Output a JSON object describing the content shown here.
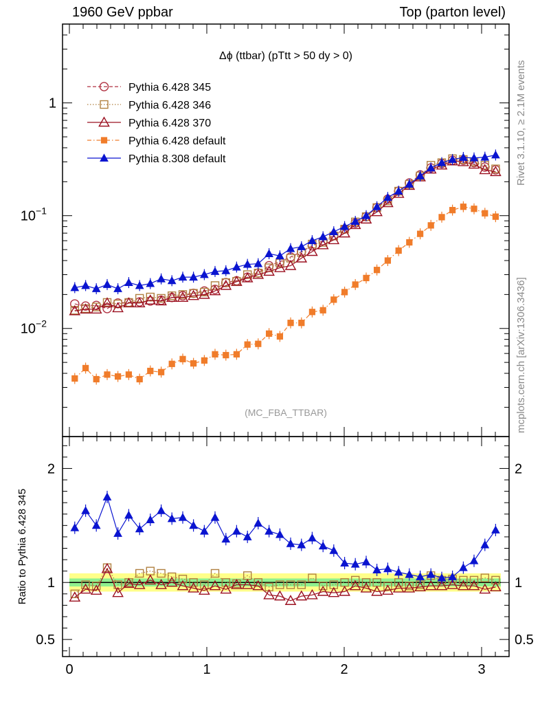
{
  "header": {
    "left": "1960 GeV ppbar",
    "right": "Top (parton level)"
  },
  "side_labels": {
    "rivet": "Rivet 3.1.10, ≥ 2.1M events",
    "mcplots": "mcplots.cern.ch [arXiv:1306.3436]"
  },
  "chart_data": [
    {
      "type": "line",
      "title": "Δϕ (ttbar) (pTtt > 50 dy > 0)",
      "watermark": "(MC_FBA_TTBAR)",
      "xlim": [
        -0.05,
        3.2
      ],
      "ylim": [
        0.0011,
        5.0
      ],
      "yscale": "log",
      "x_ticks": [
        0,
        1,
        2,
        3
      ],
      "y_tick_labels": [
        "10^-2",
        "10^-1",
        "1"
      ],
      "legend_position": "top-left",
      "x": [
        0.039,
        0.118,
        0.196,
        0.275,
        0.353,
        0.432,
        0.511,
        0.589,
        0.668,
        0.746,
        0.825,
        0.903,
        0.982,
        1.06,
        1.139,
        1.217,
        1.296,
        1.374,
        1.453,
        1.532,
        1.61,
        1.689,
        1.767,
        1.846,
        1.924,
        2.003,
        2.081,
        2.16,
        2.238,
        2.317,
        2.396,
        2.474,
        2.553,
        2.631,
        2.71,
        2.788,
        2.867,
        2.945,
        3.024,
        3.102
      ],
      "series": [
        {
          "name": "Pythia 6.428 345",
          "color": "#b03040",
          "marker": "open-circle",
          "line": "dashed",
          "values": [
            0.0165,
            0.0158,
            0.016,
            0.015,
            0.0168,
            0.017,
            0.0172,
            0.0175,
            0.0178,
            0.0188,
            0.0195,
            0.0205,
            0.0215,
            0.0222,
            0.0255,
            0.0265,
            0.0285,
            0.031,
            0.036,
            0.039,
            0.043,
            0.048,
            0.054,
            0.06,
            0.067,
            0.076,
            0.086,
            0.098,
            0.118,
            0.14,
            0.165,
            0.195,
            0.23,
            0.265,
            0.29,
            0.31,
            0.31,
            0.295,
            0.27,
            0.255
          ]
        },
        {
          "name": "Pythia 6.428 346",
          "color": "#b08040",
          "marker": "open-square",
          "line": "dotted",
          "values": [
            0.0145,
            0.015,
            0.0155,
            0.017,
            0.0165,
            0.017,
            0.0185,
            0.019,
            0.0185,
            0.0195,
            0.02,
            0.0205,
            0.021,
            0.024,
            0.0255,
            0.0262,
            0.03,
            0.031,
            0.0345,
            0.038,
            0.042,
            0.047,
            0.056,
            0.058,
            0.066,
            0.076,
            0.088,
            0.098,
            0.118,
            0.135,
            0.165,
            0.19,
            0.225,
            0.28,
            0.295,
            0.32,
            0.315,
            0.3,
            0.28,
            0.26
          ]
        },
        {
          "name": "Pythia 6.428 370",
          "color": "#9b1020",
          "marker": "open-triangle",
          "line": "solid",
          "values": [
            0.0143,
            0.0148,
            0.0148,
            0.0168,
            0.0152,
            0.0168,
            0.0168,
            0.0178,
            0.0175,
            0.0188,
            0.0188,
            0.0195,
            0.02,
            0.0215,
            0.024,
            0.026,
            0.028,
            0.03,
            0.032,
            0.0345,
            0.036,
            0.042,
            0.048,
            0.055,
            0.061,
            0.07,
            0.083,
            0.093,
            0.108,
            0.13,
            0.157,
            0.185,
            0.22,
            0.258,
            0.28,
            0.305,
            0.3,
            0.285,
            0.255,
            0.245
          ]
        },
        {
          "name": "Pythia 6.428 default",
          "color": "#f07c2a",
          "marker": "filled-square",
          "line": "dashdot",
          "values": [
            0.0036,
            0.00445,
            0.00355,
            0.0039,
            0.00375,
            0.0039,
            0.00355,
            0.0042,
            0.0041,
            0.00485,
            0.00535,
            0.0049,
            0.0052,
            0.0059,
            0.0058,
            0.0059,
            0.0072,
            0.0073,
            0.009,
            0.0085,
            0.0112,
            0.0112,
            0.014,
            0.0145,
            0.018,
            0.021,
            0.0245,
            0.028,
            0.033,
            0.04,
            0.049,
            0.058,
            0.069,
            0.082,
            0.097,
            0.112,
            0.12,
            0.115,
            0.105,
            0.098
          ]
        },
        {
          "name": "Pythia 8.308 default",
          "color": "#0a14d0",
          "marker": "filled-triangle",
          "line": "solid",
          "values": [
            0.023,
            0.024,
            0.0225,
            0.0245,
            0.0225,
            0.0255,
            0.024,
            0.025,
            0.0275,
            0.0265,
            0.0285,
            0.0285,
            0.03,
            0.032,
            0.0325,
            0.035,
            0.037,
            0.0375,
            0.046,
            0.044,
            0.051,
            0.053,
            0.06,
            0.065,
            0.072,
            0.08,
            0.089,
            0.1,
            0.12,
            0.145,
            0.165,
            0.19,
            0.225,
            0.265,
            0.295,
            0.315,
            0.328,
            0.325,
            0.33,
            0.345
          ]
        }
      ]
    },
    {
      "type": "line",
      "ylabel": "Ratio to Pythia 6.428 345",
      "xlim": [
        -0.05,
        3.2
      ],
      "ylim": [
        0.35,
        2.28
      ],
      "x_ticks": [
        0,
        1,
        2,
        3
      ],
      "y_ticks": [
        0.5,
        1,
        2
      ],
      "reference_band": {
        "inner_color": "#8ff08f",
        "outer_color": "#ffff8a",
        "inner_halfwidth": 0.035,
        "outer_halfwidth": 0.08
      },
      "x": [
        0.039,
        0.118,
        0.196,
        0.275,
        0.353,
        0.432,
        0.511,
        0.589,
        0.668,
        0.746,
        0.825,
        0.903,
        0.982,
        1.06,
        1.139,
        1.217,
        1.296,
        1.374,
        1.453,
        1.532,
        1.61,
        1.689,
        1.767,
        1.846,
        1.924,
        2.003,
        2.081,
        2.16,
        2.238,
        2.317,
        2.396,
        2.474,
        2.553,
        2.631,
        2.71,
        2.788,
        2.867,
        2.945,
        3.024,
        3.102
      ],
      "series": [
        {
          "name": "Pythia 6.428 346",
          "values": [
            0.9,
            0.98,
            0.97,
            1.13,
            0.98,
            1.0,
            1.08,
            1.1,
            1.08,
            1.05,
            1.03,
            1.0,
            0.98,
            1.08,
            1.0,
            0.99,
            1.06,
            1.0,
            0.96,
            0.98,
            0.98,
            0.98,
            1.04,
            0.97,
            0.98,
            1.0,
            1.02,
            1.0,
            1.0,
            0.97,
            1.0,
            0.97,
            0.98,
            1.06,
            1.02,
            1.03,
            1.02,
            1.02,
            1.04,
            1.02
          ]
        },
        {
          "name": "Pythia 6.428 370",
          "values": [
            0.87,
            0.94,
            0.93,
            1.12,
            0.91,
            0.99,
            0.98,
            1.02,
            0.98,
            1.0,
            0.97,
            0.95,
            0.93,
            0.97,
            0.94,
            0.98,
            0.98,
            0.97,
            0.89,
            0.88,
            0.84,
            0.88,
            0.89,
            0.92,
            0.91,
            0.92,
            0.97,
            0.95,
            0.92,
            0.93,
            0.95,
            0.95,
            0.96,
            0.97,
            0.97,
            0.98,
            0.97,
            0.97,
            0.94,
            0.96
          ]
        },
        {
          "name": "Pythia 8.308 default",
          "values": [
            1.48,
            1.63,
            1.5,
            1.75,
            1.43,
            1.59,
            1.47,
            1.55,
            1.63,
            1.56,
            1.57,
            1.5,
            1.45,
            1.57,
            1.38,
            1.45,
            1.4,
            1.52,
            1.45,
            1.42,
            1.34,
            1.33,
            1.39,
            1.32,
            1.28,
            1.17,
            1.16,
            1.18,
            1.11,
            1.12,
            1.09,
            1.07,
            1.05,
            1.07,
            1.04,
            1.05,
            1.13,
            1.19,
            1.33,
            1.46
          ]
        }
      ]
    }
  ]
}
